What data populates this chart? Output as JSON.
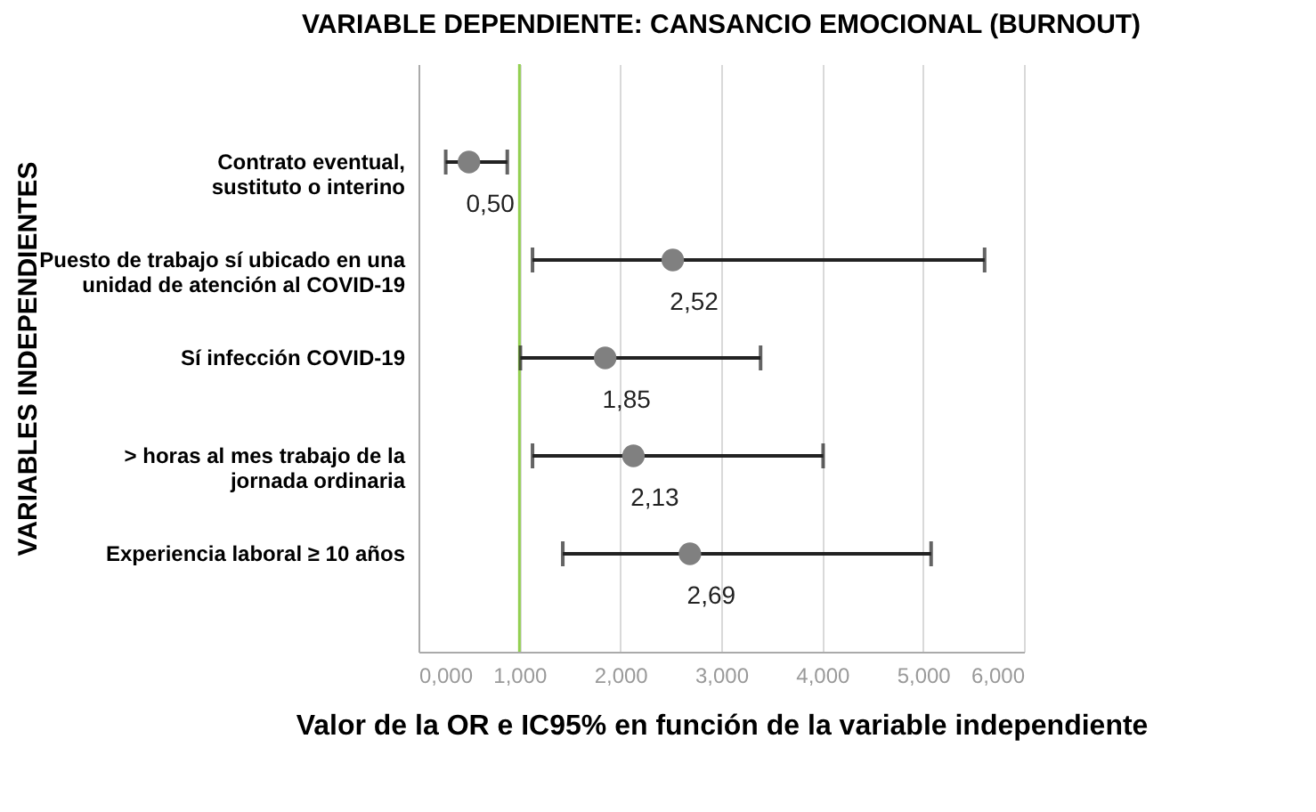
{
  "chart_data": {
    "type": "scatter",
    "orientation": "horizontal",
    "title": "VARIABLE DEPENDIENTE: CANSANCIO EMOCIONAL (BURNOUT)",
    "xlabel": "Valor de la OR e IC95% en función de la variable independiente",
    "ylabel": "VARIABLES INDEPENDIENTES",
    "categories": [
      "Contrato eventual,\nsustituto o interino",
      "Puesto de trabajo sí ubicado en una\nunidad de atención al COVID-19",
      "Sí infección COVID-19",
      "> horas al mes trabajo de la\njornada ordinaria",
      "Experiencia laboral ≥ 10 años"
    ],
    "values": [
      0.5,
      2.52,
      1.85,
      2.13,
      2.69
    ],
    "errors": [
      [
        0.27,
        0.88
      ],
      [
        1.13,
        5.61
      ],
      [
        1.01,
        3.39
      ],
      [
        1.13,
        4.01
      ],
      [
        1.43,
        5.08
      ]
    ],
    "value_labels": [
      "0,50",
      "2,52",
      "1,85",
      "2,13",
      "2,69"
    ],
    "color": "#808080",
    "marker": "circle",
    "grid": "x",
    "xlim": [
      0,
      6
    ],
    "xticks": [
      {
        "value": 0,
        "label": "0,000"
      },
      {
        "value": 1,
        "label": "1,000"
      },
      {
        "value": 2,
        "label": "2,000"
      },
      {
        "value": 3,
        "label": "3,000"
      },
      {
        "value": 4,
        "label": "4,000"
      },
      {
        "value": 5,
        "label": "5,000"
      },
      {
        "value": 6,
        "label": "6,000"
      }
    ],
    "ref_lines": [
      {
        "axis": "x",
        "value": 1,
        "color": "#92d050"
      }
    ]
  }
}
